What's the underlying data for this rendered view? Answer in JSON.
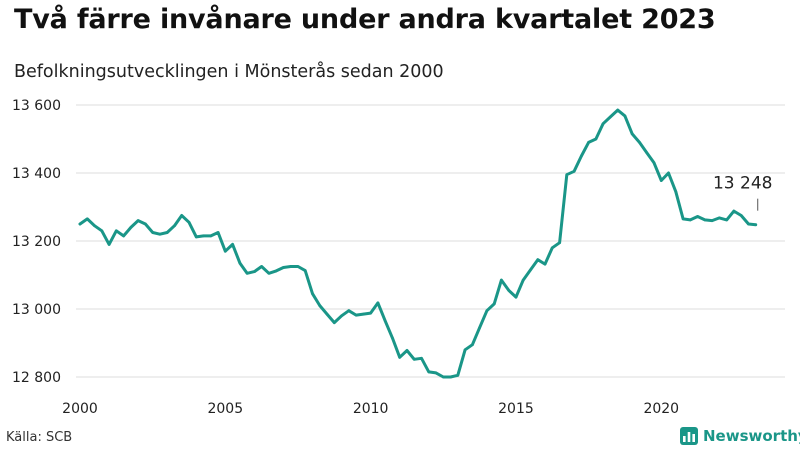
{
  "title": "Två färre invånare under andra kvartalet 2023",
  "subtitle": "Befolkningsutvecklingen i Mönsterås sedan 2000",
  "source": "Källa: SCB",
  "brand": {
    "name": "Newsworthy",
    "icon": "newsworthy-bar-chart-icon"
  },
  "colors": {
    "line": "#1a9688",
    "grid": "#dddddd",
    "text": "#222222",
    "brand": "#1a9688"
  },
  "chart_data": {
    "type": "line",
    "title": "Två färre invånare under andra kvartalet 2023",
    "subtitle": "Befolkningsutvecklingen i Mönsterås sedan 2000",
    "xlabel": "",
    "ylabel": "",
    "xlim": [
      2000,
      2023.5
    ],
    "ylim": [
      12800,
      13600
    ],
    "x_ticks": [
      {
        "value": 2000,
        "label": "2000"
      },
      {
        "value": 2005,
        "label": "2005"
      },
      {
        "value": 2010,
        "label": "2010"
      },
      {
        "value": 2015,
        "label": "2015"
      },
      {
        "value": 2020,
        "label": "2020"
      }
    ],
    "y_ticks": [
      {
        "value": 12800,
        "label": "12 800"
      },
      {
        "value": 13000,
        "label": "13 000"
      },
      {
        "value": 13200,
        "label": "13 200"
      },
      {
        "value": 13400,
        "label": "13 400"
      },
      {
        "value": 13600,
        "label": "13 600"
      }
    ],
    "grid": "horizontal",
    "annotation": {
      "x": 2023.25,
      "y": 13248,
      "label": "13 248"
    },
    "series": [
      {
        "x": [
          2000.0,
          2000.25,
          2000.5,
          2000.75,
          2001.0,
          2001.25,
          2001.5,
          2001.75,
          2002.0,
          2002.25,
          2002.5,
          2002.75,
          2003.0,
          2003.25,
          2003.5,
          2003.75,
          2004.0,
          2004.25,
          2004.5,
          2004.75,
          2005.0,
          2005.25,
          2005.5,
          2005.75,
          2006.0,
          2006.25,
          2006.5,
          2006.75,
          2007.0,
          2007.25,
          2007.5,
          2007.75,
          2008.0,
          2008.25,
          2008.5,
          2008.75,
          2009.0,
          2009.25,
          2009.5,
          2009.75,
          2010.0,
          2010.25,
          2010.5,
          2010.75,
          2011.0,
          2011.25,
          2011.5,
          2011.75,
          2012.0,
          2012.25,
          2012.5,
          2012.75,
          2013.0,
          2013.25,
          2013.5,
          2013.75,
          2014.0,
          2014.25,
          2014.5,
          2014.75,
          2015.0,
          2015.25,
          2015.5,
          2015.75,
          2016.0,
          2016.25,
          2016.5,
          2016.75,
          2017.0,
          2017.25,
          2017.5,
          2017.75,
          2018.0,
          2018.25,
          2018.5,
          2018.75,
          2019.0,
          2019.25,
          2019.5,
          2019.75,
          2020.0,
          2020.25,
          2020.5,
          2020.75,
          2021.0,
          2021.25,
          2021.5,
          2021.75,
          2022.0,
          2022.25,
          2022.5,
          2022.75,
          2023.0,
          2023.25
        ],
        "values": [
          13250,
          13265,
          13245,
          13230,
          13190,
          13230,
          13215,
          13240,
          13260,
          13250,
          13225,
          13220,
          13225,
          13245,
          13275,
          13255,
          13212,
          13215,
          13215,
          13225,
          13170,
          13190,
          13135,
          13105,
          13110,
          13125,
          13105,
          13112,
          13122,
          13125,
          13125,
          13113,
          13045,
          13010,
          12985,
          12960,
          12980,
          12995,
          12982,
          12985,
          12988,
          13018,
          12965,
          12915,
          12858,
          12878,
          12852,
          12855,
          12815,
          12812,
          12800,
          12800,
          12805,
          12880,
          12895,
          12945,
          12995,
          13015,
          13085,
          13055,
          13035,
          13085,
          13115,
          13145,
          13132,
          13180,
          13195,
          13395,
          13405,
          13450,
          13490,
          13500,
          13545,
          13565,
          13585,
          13568,
          13515,
          13490,
          13460,
          13430,
          13378,
          13400,
          13345,
          13265,
          13262,
          13272,
          13262,
          13260,
          13268,
          13262,
          13288,
          13275,
          13250,
          13248
        ]
      }
    ]
  }
}
